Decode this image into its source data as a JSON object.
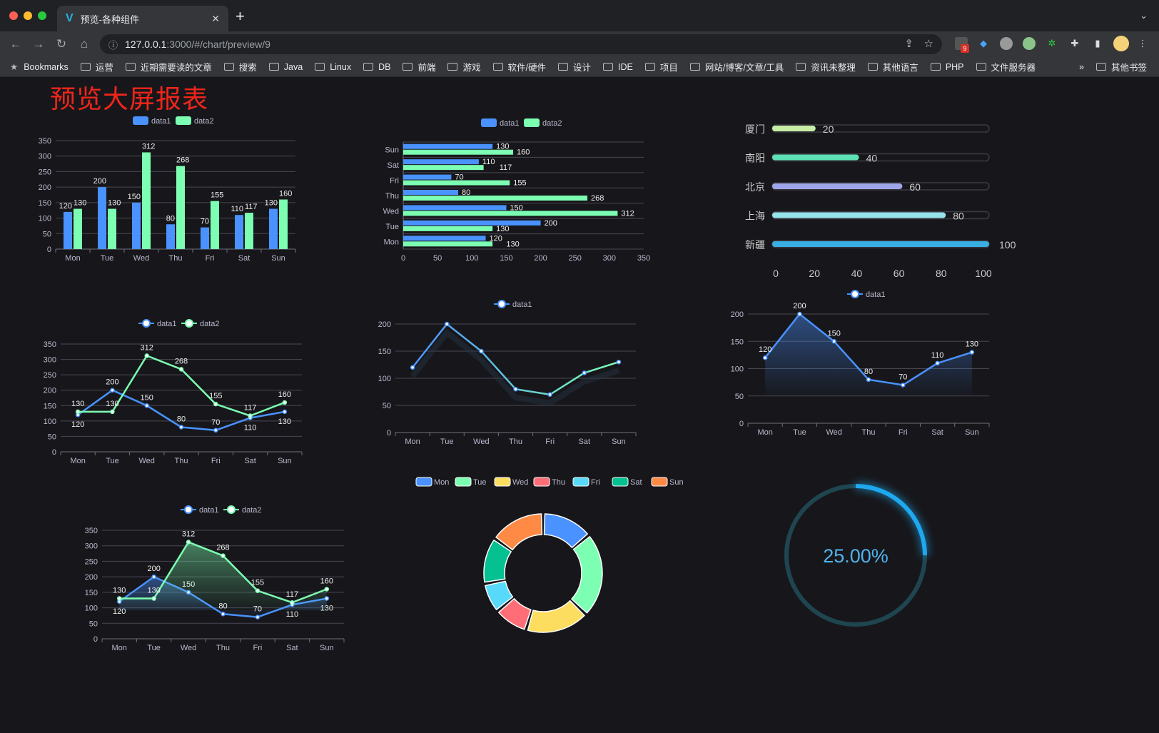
{
  "browser": {
    "tab_title": "预览-各种组件",
    "url_host": "127.0.0.1",
    "url_path": ":3000/#/chart/preview/9",
    "extension_badge": "9",
    "bookmarks": [
      "Bookmarks",
      "运营",
      "近期需要读的文章",
      "搜索",
      "Java",
      "Linux",
      "DB",
      "前端",
      "游戏",
      "软件/硬件",
      "设计",
      "IDE",
      "项目",
      "网站/博客/文章/工具",
      "资讯未整理",
      "其他语言",
      "PHP",
      "文件服务器"
    ],
    "bookmarks_more": "»",
    "other_bookmarks": "其他书签"
  },
  "page": {
    "title": "预览大屏报表",
    "title_color": "#f0251a",
    "background": "#17171b"
  },
  "colors": {
    "data1": "#4992ff",
    "data2": "#7cffb2",
    "axis_text": "#b9b8ce",
    "grid": "#484753"
  },
  "chart_data": [
    {
      "id": "bar",
      "type": "bar",
      "categories": [
        "Mon",
        "Tue",
        "Wed",
        "Thu",
        "Fri",
        "Sat",
        "Sun"
      ],
      "ylim": [
        0,
        350
      ],
      "yticks": [
        0,
        50,
        100,
        150,
        200,
        250,
        300,
        350
      ],
      "legend": "top",
      "series": [
        {
          "name": "data1",
          "values": [
            120,
            200,
            150,
            80,
            70,
            110,
            130
          ]
        },
        {
          "name": "data2",
          "values": [
            130,
            130,
            312,
            268,
            155,
            117,
            160
          ]
        }
      ]
    },
    {
      "id": "hbar",
      "type": "bar",
      "orientation": "horizontal",
      "categories": [
        "Mon",
        "Tue",
        "Wed",
        "Thu",
        "Fri",
        "Sat",
        "Sun"
      ],
      "xlim": [
        0,
        350
      ],
      "xticks": [
        0,
        50,
        100,
        150,
        200,
        250,
        300,
        350
      ],
      "legend": "top",
      "series": [
        {
          "name": "data1",
          "values": [
            120,
            200,
            150,
            80,
            70,
            110,
            130
          ]
        },
        {
          "name": "data2",
          "values": [
            130,
            130,
            312,
            268,
            155,
            117,
            160
          ]
        }
      ]
    },
    {
      "id": "progress",
      "type": "bar",
      "orientation": "horizontal",
      "categories": [
        "厦门",
        "南阳",
        "北京",
        "上海",
        "新疆"
      ],
      "values": [
        20,
        40,
        60,
        80,
        100
      ],
      "xlim": [
        0,
        100
      ],
      "xticks": [
        0,
        20,
        40,
        60,
        80,
        100
      ],
      "colors": [
        "#c7eea6",
        "#5ee0b5",
        "#9ea6ea",
        "#97e3ec",
        "#38aee2"
      ]
    },
    {
      "id": "line2",
      "type": "line",
      "categories": [
        "Mon",
        "Tue",
        "Wed",
        "Thu",
        "Fri",
        "Sat",
        "Sun"
      ],
      "ylim": [
        0,
        350
      ],
      "yticks": [
        0,
        50,
        100,
        150,
        200,
        250,
        300,
        350
      ],
      "legend": "top",
      "series": [
        {
          "name": "data1",
          "values": [
            120,
            200,
            150,
            80,
            70,
            110,
            130
          ]
        },
        {
          "name": "data2",
          "values": [
            130,
            130,
            312,
            268,
            155,
            117,
            160
          ]
        }
      ]
    },
    {
      "id": "line1",
      "type": "line",
      "categories": [
        "Mon",
        "Tue",
        "Wed",
        "Thu",
        "Fri",
        "Sat",
        "Sun"
      ],
      "ylim": [
        0,
        200
      ],
      "yticks": [
        0,
        50,
        100,
        150,
        200
      ],
      "legend": "top",
      "series": [
        {
          "name": "data1",
          "values": [
            120,
            200,
            150,
            80,
            70,
            110,
            130
          ]
        }
      ]
    },
    {
      "id": "area1",
      "type": "area",
      "categories": [
        "Mon",
        "Tue",
        "Wed",
        "Thu",
        "Fri",
        "Sat",
        "Sun"
      ],
      "ylim": [
        0,
        200
      ],
      "yticks": [
        0,
        50,
        100,
        150,
        200
      ],
      "legend": "top",
      "series": [
        {
          "name": "data1",
          "values": [
            120,
            200,
            150,
            80,
            70,
            110,
            130
          ]
        }
      ]
    },
    {
      "id": "area2",
      "type": "area",
      "categories": [
        "Mon",
        "Tue",
        "Wed",
        "Thu",
        "Fri",
        "Sat",
        "Sun"
      ],
      "ylim": [
        0,
        350
      ],
      "yticks": [
        0,
        50,
        100,
        150,
        200,
        250,
        300,
        350
      ],
      "legend": "top",
      "series": [
        {
          "name": "data1",
          "values": [
            120,
            200,
            150,
            80,
            70,
            110,
            130
          ]
        },
        {
          "name": "data2",
          "values": [
            130,
            130,
            312,
            268,
            155,
            117,
            160
          ]
        }
      ]
    },
    {
      "id": "donut",
      "type": "pie",
      "categories": [
        "Mon",
        "Tue",
        "Wed",
        "Thu",
        "Fri",
        "Sat",
        "Sun"
      ],
      "values": [
        120,
        200,
        150,
        80,
        70,
        110,
        130
      ],
      "colors": [
        "#4992ff",
        "#7cffb2",
        "#fddd60",
        "#ff6e76",
        "#58d9f9",
        "#05c091",
        "#ff8a45"
      ],
      "legend": "top"
    },
    {
      "id": "gauge",
      "type": "gauge",
      "value": 25,
      "label": "25.00%",
      "color": "#1ea8ef",
      "track_color": "#1f4650"
    }
  ]
}
